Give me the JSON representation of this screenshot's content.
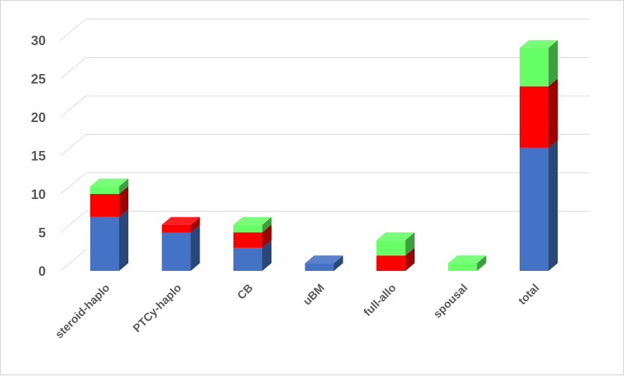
{
  "chart_data": {
    "type": "bar",
    "stacked": true,
    "style": "3d-column",
    "categories": [
      "steroid-haplo",
      "PTCy-haplo",
      "CB",
      "uBM",
      "full-allo",
      "spousal",
      "total"
    ],
    "series": [
      {
        "color": "#4472c4",
        "values": [
          7,
          5,
          3,
          1,
          0,
          0,
          16
        ]
      },
      {
        "color": "#ff0000",
        "values": [
          3,
          1,
          2,
          0,
          2,
          0,
          8
        ]
      },
      {
        "color": "#66ff66",
        "values": [
          1,
          0,
          1,
          0,
          2,
          1,
          5
        ]
      }
    ],
    "yticks": [
      "0",
      "5",
      "10",
      "15",
      "20",
      "25",
      "30"
    ],
    "ylim": [
      0,
      30
    ],
    "grid": true,
    "legend": "none"
  }
}
